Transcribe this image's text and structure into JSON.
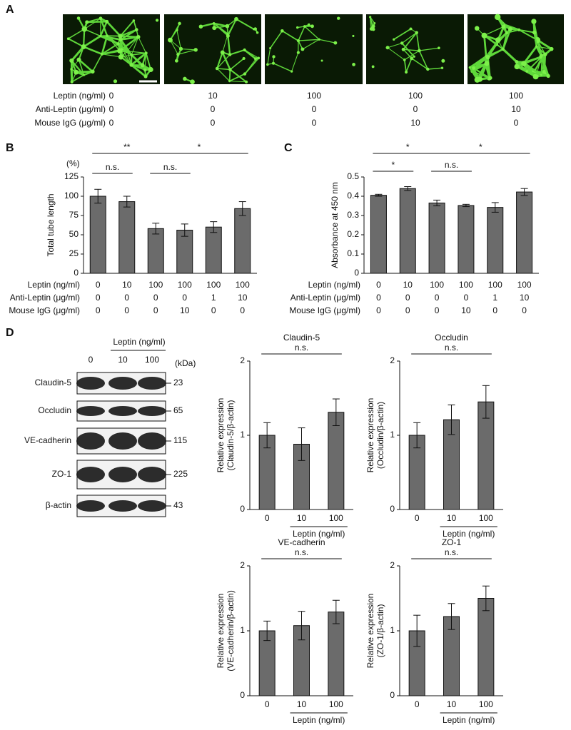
{
  "panel_labels": [
    "A",
    "B",
    "C",
    "D"
  ],
  "panel_a": {
    "conditions": [
      {
        "label": "Leptin (ng/ml)",
        "values": [
          0,
          10,
          100,
          100,
          100
        ]
      },
      {
        "label": "Anti-Leptin (μg/ml)",
        "values": [
          0,
          0,
          0,
          0,
          10
        ]
      },
      {
        "label": "Mouse IgG (μg/ml)",
        "values": [
          0,
          0,
          0,
          10,
          0
        ]
      }
    ]
  },
  "blot": {
    "title": "Leptin (ng/ml)",
    "lanes": [
      "0",
      "10",
      "100"
    ],
    "unit": "(kDa)",
    "rows": [
      {
        "name": "Claudin-5",
        "kda": 23
      },
      {
        "name": "Occludin",
        "kda": 65
      },
      {
        "name": "VE-cadherin",
        "kda": 115
      },
      {
        "name": "ZO-1",
        "kda": 225
      },
      {
        "name": "β-actin",
        "kda": 43
      }
    ]
  },
  "chart_data": [
    {
      "type": "bar",
      "ylabel": "Total tube length",
      "yunit": "(%)",
      "color": "#6b6b6b",
      "ylim": [
        0,
        125
      ],
      "yticks": [
        0,
        25,
        50,
        75,
        100,
        125
      ],
      "values": [
        100,
        93,
        58,
        56,
        60,
        84
      ],
      "errors": [
        9,
        7,
        7,
        8,
        7,
        9
      ],
      "significance": [
        "**",
        "n.s.",
        "*",
        "n.s."
      ],
      "conditions": [
        {
          "label": "Leptin (ng/ml)",
          "values": [
            0,
            10,
            100,
            100,
            100,
            100
          ]
        },
        {
          "label": "Anti-Leptin (μg/ml)",
          "values": [
            0,
            0,
            0,
            0,
            1,
            10
          ]
        },
        {
          "label": "Mouse IgG (μg/ml)",
          "values": [
            0,
            0,
            0,
            10,
            0,
            0
          ]
        }
      ]
    },
    {
      "type": "bar",
      "ylabel": "Absorbance at 450 nm",
      "color": "#6b6b6b",
      "ylim": [
        0,
        0.5
      ],
      "yticks": [
        0,
        0.1,
        0.2,
        0.3,
        0.4,
        0.5
      ],
      "values": [
        0.405,
        0.44,
        0.365,
        0.352,
        0.342,
        0.422
      ],
      "errors": [
        0.005,
        0.01,
        0.015,
        0.006,
        0.025,
        0.018
      ],
      "significance": [
        "*",
        "*",
        "n.s.",
        "*"
      ],
      "conditions": [
        {
          "label": "Leptin (ng/ml)",
          "values": [
            0,
            10,
            100,
            100,
            100,
            100
          ]
        },
        {
          "label": "Anti-Leptin (μg/ml)",
          "values": [
            0,
            0,
            0,
            0,
            1,
            10
          ]
        },
        {
          "label": "Mouse IgG (μg/ml)",
          "values": [
            0,
            0,
            0,
            10,
            0,
            0
          ]
        }
      ]
    },
    {
      "type": "bar",
      "title": "Claudin-5",
      "ylabel": [
        "Relative expression",
        "(Claudin-5/β-actin)"
      ],
      "xlabel": "Leptin (ng/ml)",
      "color": "#6b6b6b",
      "categories": [
        "0",
        "10",
        "100"
      ],
      "values": [
        1.0,
        0.88,
        1.31
      ],
      "errors": [
        0.17,
        0.22,
        0.18
      ],
      "ylim": [
        0,
        2
      ],
      "yticks": [
        0,
        1,
        2
      ],
      "significance": [
        "n.s."
      ]
    },
    {
      "type": "bar",
      "title": "Occludin",
      "ylabel": [
        "Relative expression",
        "(Occludin/β-actin)"
      ],
      "xlabel": "Leptin (ng/ml)",
      "color": "#6b6b6b",
      "categories": [
        "0",
        "10",
        "100"
      ],
      "values": [
        1.0,
        1.21,
        1.45
      ],
      "errors": [
        0.17,
        0.2,
        0.22
      ],
      "ylim": [
        0,
        2
      ],
      "yticks": [
        0,
        1,
        2
      ],
      "significance": [
        "n.s."
      ]
    },
    {
      "type": "bar",
      "title": "VE-cadherin",
      "ylabel": [
        "Relative expression",
        "(VE-cadherin/β-actin)"
      ],
      "xlabel": "Leptin (ng/ml)",
      "color": "#6b6b6b",
      "categories": [
        "0",
        "10",
        "100"
      ],
      "values": [
        1.0,
        1.08,
        1.29
      ],
      "errors": [
        0.15,
        0.22,
        0.18
      ],
      "ylim": [
        0,
        2
      ],
      "yticks": [
        0,
        1,
        2
      ],
      "significance": [
        "n.s."
      ]
    },
    {
      "type": "bar",
      "title": "ZO-1",
      "ylabel": [
        "Relative expression",
        "(ZO-1/β-actin)"
      ],
      "xlabel": "Leptin (ng/ml)",
      "color": "#6b6b6b",
      "categories": [
        "0",
        "10",
        "100"
      ],
      "values": [
        1.0,
        1.22,
        1.5
      ],
      "errors": [
        0.24,
        0.2,
        0.19
      ],
      "ylim": [
        0,
        2
      ],
      "yticks": [
        0,
        1,
        2
      ],
      "significance": [
        "n.s."
      ]
    }
  ]
}
